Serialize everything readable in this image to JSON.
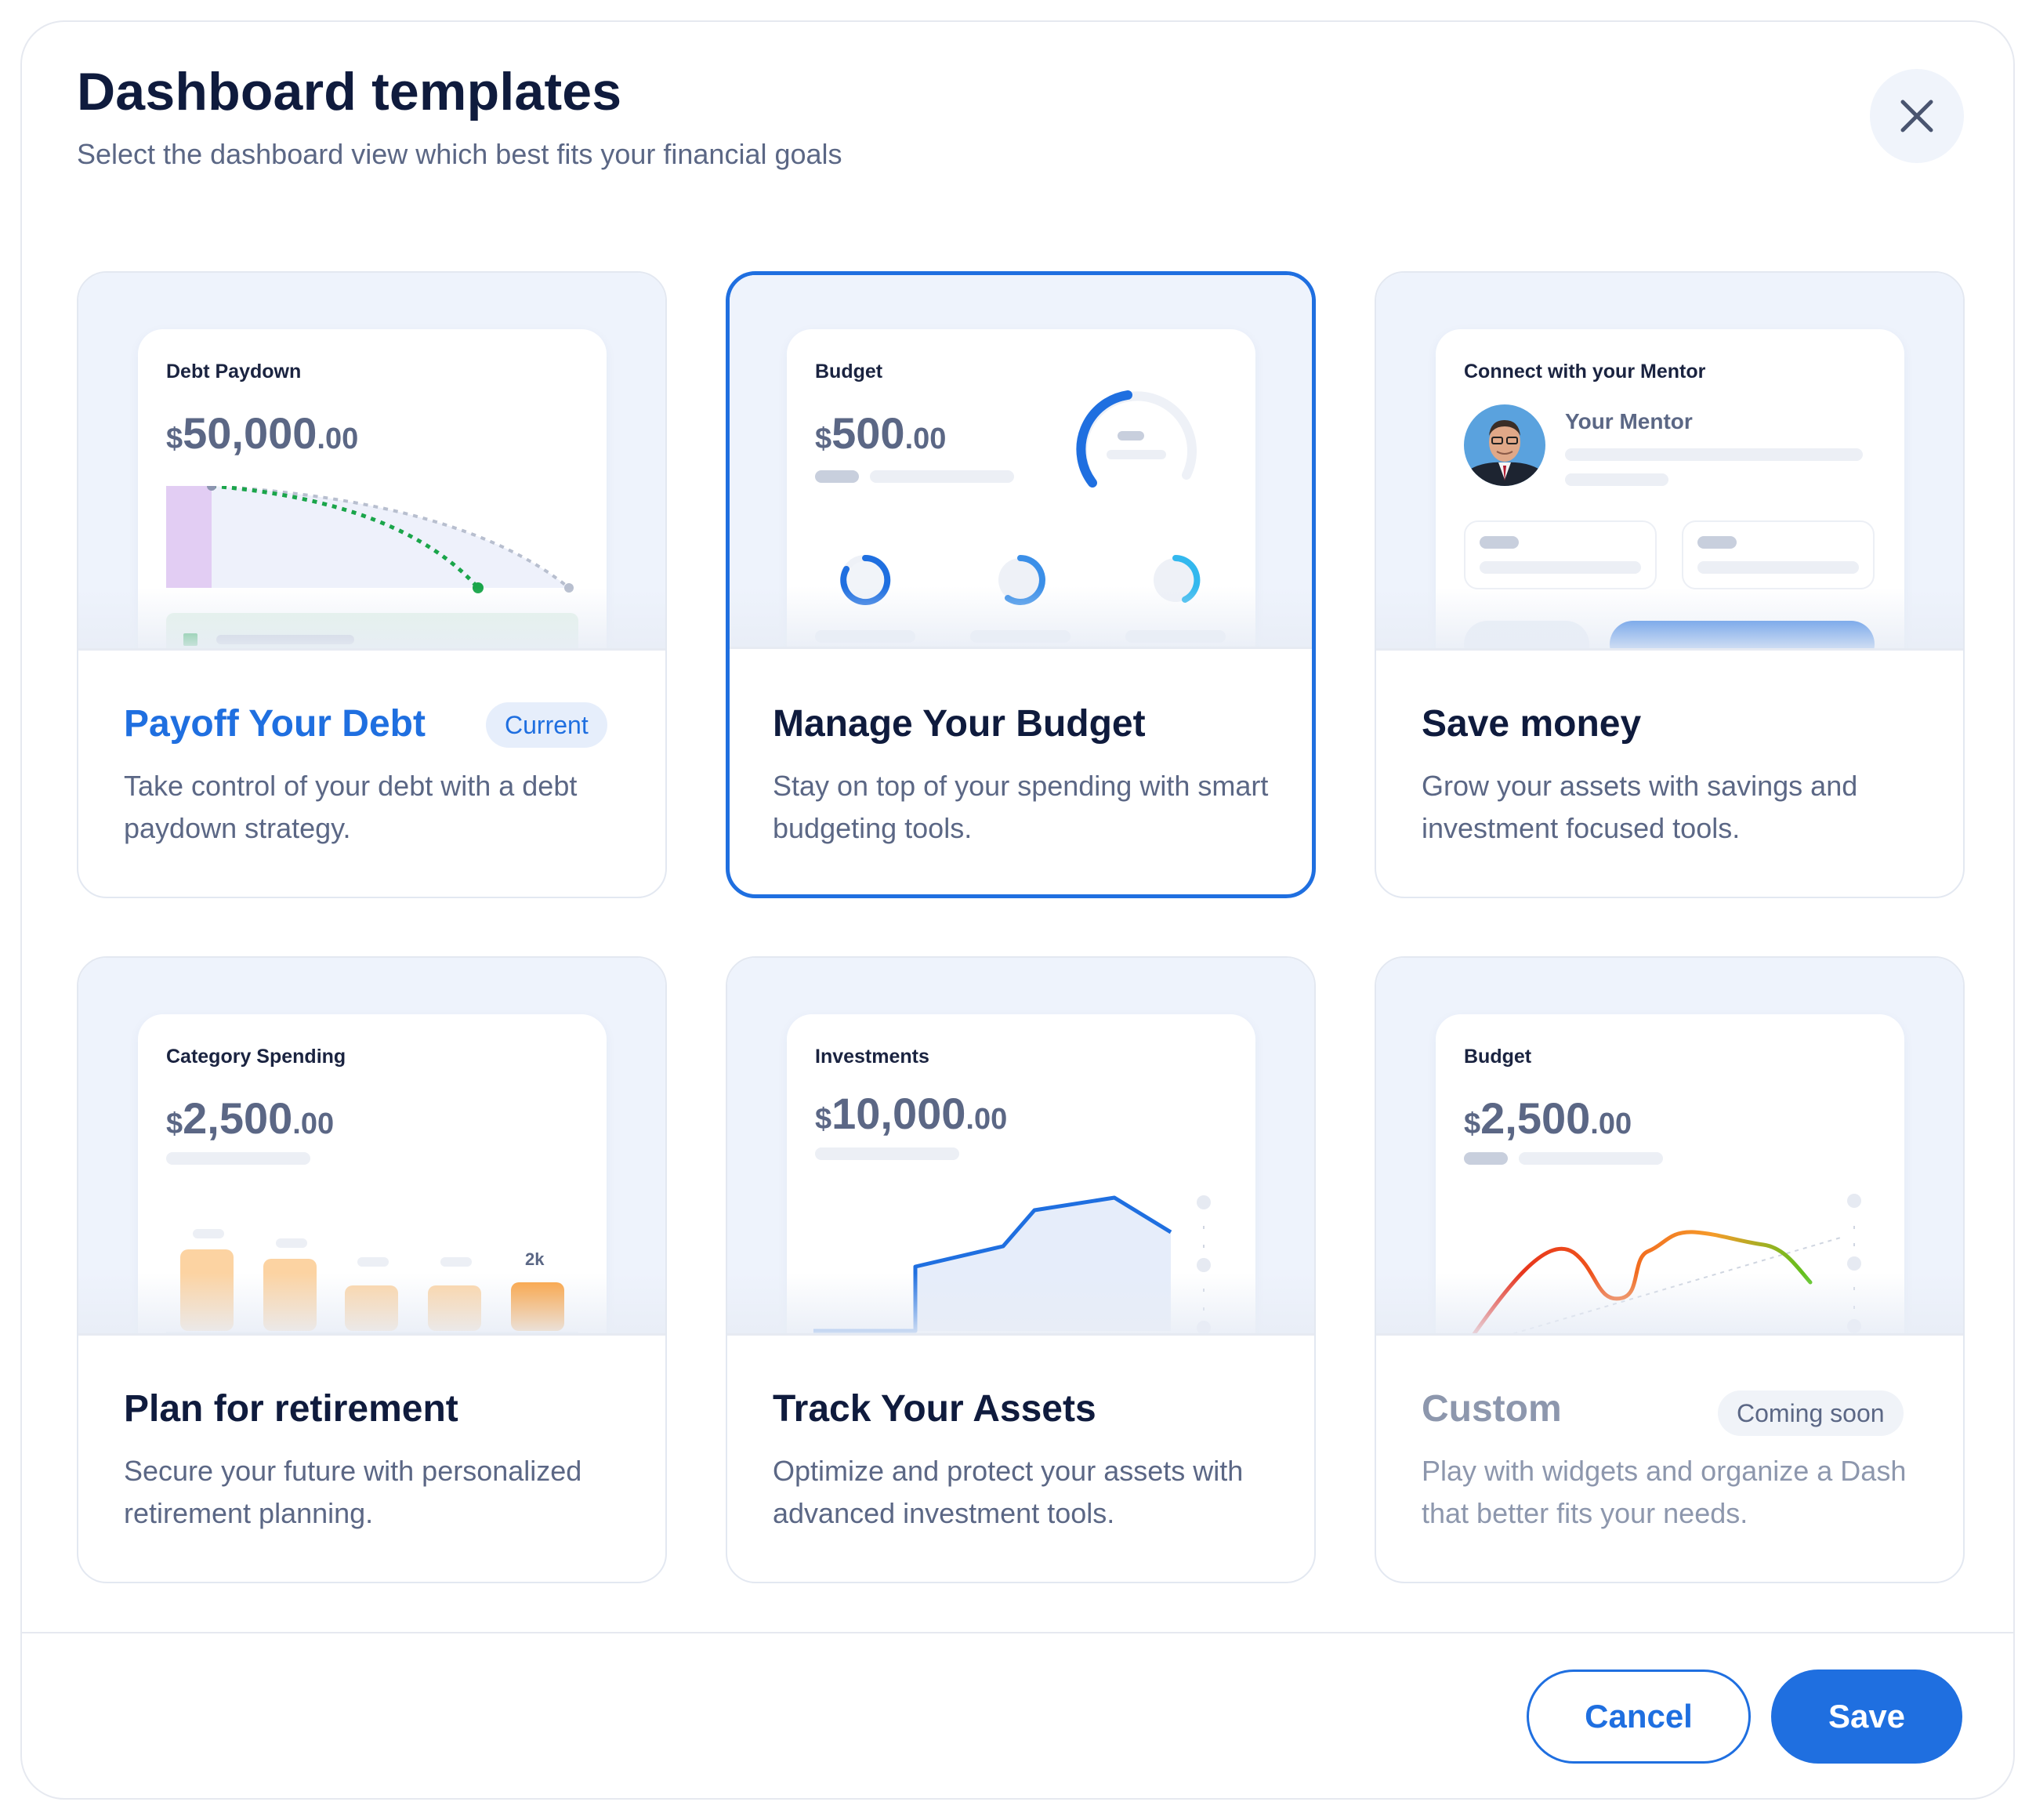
{
  "dialog": {
    "title": "Dashboard templates",
    "subtitle": "Select the dashboard view which best fits your financial goals"
  },
  "cards": [
    {
      "preview_label": "Debt Paydown",
      "amount_currency": "$",
      "amount_main": "50,000",
      "amount_cents": ".00",
      "title": "Payoff Your Debt",
      "badge": "Current",
      "description": "Take control of your debt with a debt paydown strategy."
    },
    {
      "preview_label": "Budget",
      "amount_currency": "$",
      "amount_main": "500",
      "amount_cents": ".00",
      "title": "Manage Your Budget",
      "description": "Stay on top of your spending with smart budgeting tools.",
      "selected": true
    },
    {
      "preview_label": "Connect with your Mentor",
      "mentor_name": "Your Mentor",
      "title": "Save money",
      "description": "Grow your assets with savings and investment focused tools."
    },
    {
      "preview_label": "Category Spending",
      "amount_currency": "$",
      "amount_main": "2,500",
      "amount_cents": ".00",
      "bar_label": "2k",
      "title": "Plan for retirement",
      "description": "Secure your future with personalized retirement planning."
    },
    {
      "preview_label": "Investments",
      "amount_currency": "$",
      "amount_main": "10,000",
      "amount_cents": ".00",
      "title": "Track Your Assets",
      "description": "Optimize and protect your assets with advanced investment  tools."
    },
    {
      "preview_label": "Budget",
      "amount_currency": "$",
      "amount_main": "2,500",
      "amount_cents": ".00",
      "title": "Custom",
      "badge": "Coming soon",
      "description": "Play with widgets and organize a Dash that better fits your needs.",
      "disabled": true
    }
  ],
  "footer": {
    "cancel_label": "Cancel",
    "save_label": "Save"
  },
  "colors": {
    "accent": "#1f6fe0",
    "heading": "#0f1b3d",
    "muted_text": "#5b6785",
    "preview_bg": "#eef3fc"
  },
  "icons": [
    "close-icon",
    "mentor-avatar",
    "money-icon"
  ]
}
